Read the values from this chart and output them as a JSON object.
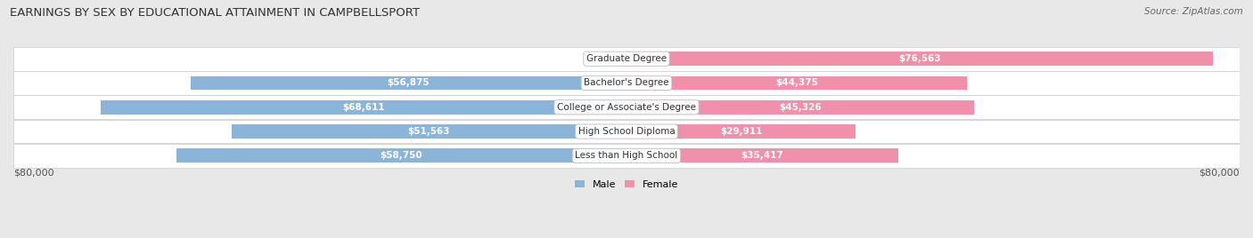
{
  "title": "EARNINGS BY SEX BY EDUCATIONAL ATTAINMENT IN CAMPBELLSPORT",
  "source": "Source: ZipAtlas.com",
  "categories": [
    "Less than High School",
    "High School Diploma",
    "College or Associate's Degree",
    "Bachelor's Degree",
    "Graduate Degree"
  ],
  "male_values": [
    58750,
    51563,
    68611,
    56875,
    0
  ],
  "female_values": [
    35417,
    29911,
    45326,
    44375,
    76563
  ],
  "male_color": "#8ab4d8",
  "female_color": "#f090aa",
  "bg_color": "#e8e8e8",
  "row_bg": "#ffffff",
  "max_value": 80000,
  "title_fontsize": 9.5,
  "bar_label_fontsize": 7.5,
  "cat_label_fontsize": 7.5,
  "axis_label": "$80,000"
}
